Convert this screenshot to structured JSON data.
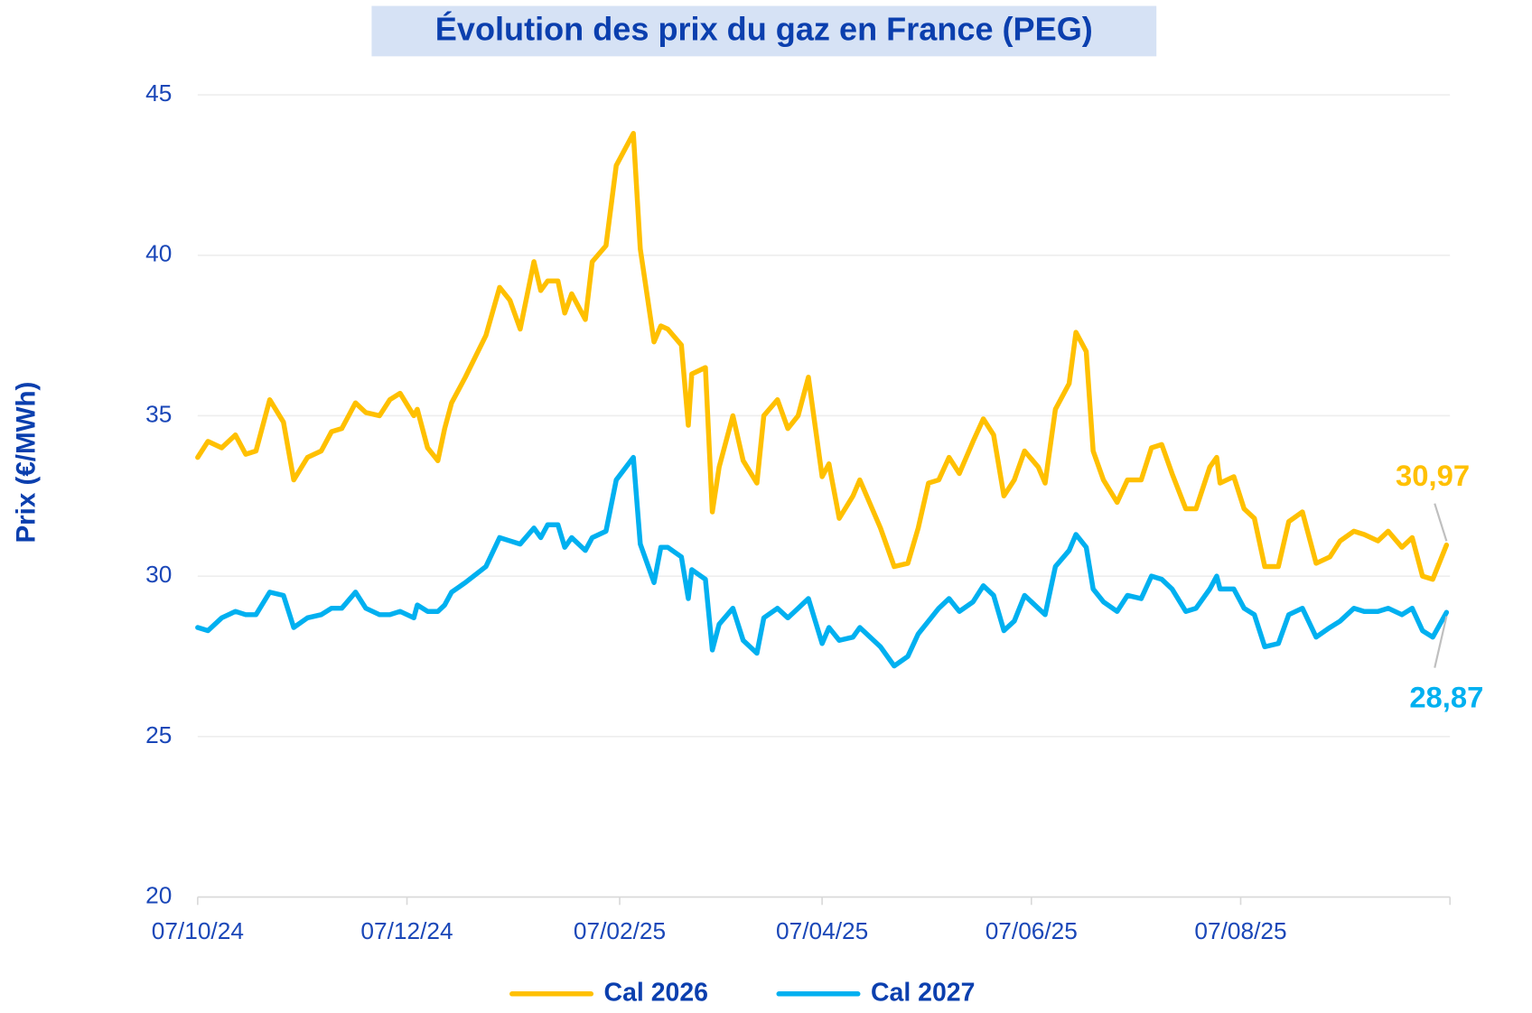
{
  "chart_data": {
    "type": "line",
    "title": "Évolution des prix du gaz en France (PEG)",
    "y_label": "Prix (€/MWh)",
    "x": [
      "07/10/24",
      "10/10/24",
      "14/10/24",
      "18/10/24",
      "21/10/24",
      "24/10/24",
      "28/10/24",
      "01/11/24",
      "04/11/24",
      "08/11/24",
      "12/11/24",
      "15/11/24",
      "18/11/24",
      "22/11/24",
      "25/11/24",
      "29/11/24",
      "02/12/24",
      "05/12/24",
      "09/12/24",
      "10/12/24",
      "13/12/24",
      "16/12/24",
      "18/12/24",
      "20/12/24",
      "24/12/24",
      "30/12/24",
      "03/01/25",
      "06/01/25",
      "09/01/25",
      "13/01/25",
      "15/01/25",
      "17/01/25",
      "20/01/25",
      "22/01/25",
      "24/01/25",
      "28/01/25",
      "30/01/25",
      "03/02/25",
      "06/02/25",
      "11/02/25",
      "13/02/25",
      "17/02/25",
      "19/02/25",
      "21/02/25",
      "25/02/25",
      "27/02/25",
      "28/02/25",
      "04/03/25",
      "06/03/25",
      "08/03/25",
      "12/03/25",
      "15/03/25",
      "19/03/25",
      "21/03/25",
      "25/03/25",
      "28/03/25",
      "31/03/25",
      "03/04/25",
      "07/04/25",
      "09/04/25",
      "12/04/25",
      "16/04/25",
      "18/04/25",
      "24/04/25",
      "28/04/25",
      "02/05/25",
      "05/05/25",
      "08/05/25",
      "11/05/25",
      "14/05/25",
      "17/05/25",
      "21/05/25",
      "24/05/25",
      "27/05/25",
      "30/05/25",
      "02/06/25",
      "05/06/25",
      "09/06/25",
      "11/06/25",
      "14/06/25",
      "18/06/25",
      "20/06/25",
      "23/06/25",
      "25/06/25",
      "28/06/25",
      "02/07/25",
      "05/07/25",
      "09/07/25",
      "12/07/25",
      "15/07/25",
      "18/07/25",
      "22/07/25",
      "25/07/25",
      "29/07/25",
      "31/07/25",
      "01/08/25",
      "05/08/25",
      "08/08/25",
      "11/08/25",
      "14/08/25",
      "18/08/25",
      "21/08/25",
      "25/08/25",
      "29/08/25",
      "02/09/25",
      "05/09/25",
      "09/09/25",
      "12/09/25",
      "16/09/25",
      "19/09/25",
      "23/09/25",
      "26/09/25",
      "29/09/25",
      "02/10/25",
      "06/10/25"
    ],
    "series": [
      {
        "name": "Cal 2026",
        "color": "#ffc000",
        "values": [
          33.7,
          34.2,
          34.0,
          34.4,
          33.8,
          33.9,
          35.5,
          34.8,
          33.0,
          33.7,
          33.9,
          34.5,
          34.6,
          35.4,
          35.1,
          35.0,
          35.5,
          35.7,
          35.0,
          35.2,
          34.0,
          33.6,
          34.6,
          35.4,
          36.2,
          37.5,
          39.0,
          38.6,
          37.7,
          39.8,
          38.9,
          39.2,
          39.2,
          38.2,
          38.8,
          38.0,
          39.8,
          40.3,
          42.8,
          43.8,
          40.2,
          37.3,
          37.8,
          37.7,
          37.2,
          34.7,
          36.3,
          36.5,
          32.0,
          33.4,
          35.0,
          33.6,
          32.9,
          35.0,
          35.5,
          34.6,
          35.0,
          36.2,
          33.1,
          33.5,
          31.8,
          32.5,
          33.0,
          31.5,
          30.3,
          30.4,
          31.5,
          32.9,
          33.0,
          33.7,
          33.2,
          34.2,
          34.9,
          34.4,
          32.5,
          33.0,
          33.9,
          33.4,
          32.9,
          35.2,
          36.0,
          37.6,
          37.0,
          33.9,
          33.0,
          32.3,
          33.0,
          33.0,
          34.0,
          34.1,
          33.2,
          32.1,
          32.1,
          33.4,
          33.7,
          32.9,
          33.1,
          32.1,
          31.8,
          30.3,
          30.3,
          31.7,
          32.0,
          30.4,
          30.6,
          31.1,
          31.4,
          31.3,
          31.1,
          31.4,
          30.9,
          31.2,
          30.0,
          29.9,
          30.97
        ],
        "value_labels": [
          null,
          null,
          null,
          null,
          null,
          null,
          null,
          null,
          null,
          null,
          null,
          null,
          null,
          null,
          null,
          null,
          null,
          null,
          null,
          null,
          null,
          null,
          null,
          null,
          null,
          null,
          null,
          null,
          null,
          null,
          null,
          null,
          null,
          null,
          null,
          null,
          null,
          null,
          null,
          null,
          null,
          null,
          null,
          null,
          null,
          null,
          null,
          null,
          null,
          null,
          null,
          null,
          null,
          null,
          null,
          null,
          null,
          null,
          null,
          null,
          null,
          null,
          null,
          null,
          null,
          null,
          null,
          null,
          null,
          null,
          null,
          null,
          null,
          null,
          null,
          null,
          null,
          null,
          null,
          null,
          null,
          null,
          null,
          null,
          null,
          null,
          null,
          null,
          null,
          null,
          null,
          null,
          null,
          null,
          null,
          null,
          null,
          null,
          null,
          null,
          null,
          null,
          null,
          null,
          null,
          null,
          null,
          null,
          null,
          null,
          null,
          null,
          null,
          null,
          "30,97"
        ]
      },
      {
        "name": "Cal 2027",
        "color": "#00b0f0",
        "values": [
          28.4,
          28.3,
          28.7,
          28.9,
          28.8,
          28.8,
          29.5,
          29.4,
          28.4,
          28.7,
          28.8,
          29.0,
          29.0,
          29.5,
          29.0,
          28.8,
          28.8,
          28.9,
          28.7,
          29.1,
          28.9,
          28.9,
          29.1,
          29.5,
          29.8,
          30.3,
          31.2,
          31.1,
          31.0,
          31.5,
          31.2,
          31.6,
          31.6,
          30.9,
          31.2,
          30.8,
          31.2,
          31.4,
          33.0,
          33.7,
          31.0,
          29.8,
          30.9,
          30.9,
          30.6,
          29.3,
          30.2,
          29.9,
          27.7,
          28.5,
          29.0,
          28.0,
          27.6,
          28.7,
          29.0,
          28.7,
          29.0,
          29.3,
          27.9,
          28.4,
          28.0,
          28.1,
          28.4,
          27.8,
          27.2,
          27.5,
          28.2,
          28.6,
          29.0,
          29.3,
          28.9,
          29.2,
          29.7,
          29.4,
          28.3,
          28.6,
          29.4,
          29.0,
          28.8,
          30.3,
          30.8,
          31.3,
          30.9,
          29.6,
          29.2,
          28.9,
          29.4,
          29.3,
          30.0,
          29.9,
          29.6,
          28.9,
          29.0,
          29.6,
          30.0,
          29.6,
          29.6,
          29.0,
          28.8,
          27.8,
          27.9,
          28.8,
          29.0,
          28.1,
          28.4,
          28.6,
          29.0,
          28.9,
          28.9,
          29.0,
          28.8,
          29.0,
          28.3,
          28.1,
          28.87
        ],
        "value_labels": [
          null,
          null,
          null,
          null,
          null,
          null,
          null,
          null,
          null,
          null,
          null,
          null,
          null,
          null,
          null,
          null,
          null,
          null,
          null,
          null,
          null,
          null,
          null,
          null,
          null,
          null,
          null,
          null,
          null,
          null,
          null,
          null,
          null,
          null,
          null,
          null,
          null,
          null,
          null,
          null,
          null,
          null,
          null,
          null,
          null,
          null,
          null,
          null,
          null,
          null,
          null,
          null,
          null,
          null,
          null,
          null,
          null,
          null,
          null,
          null,
          null,
          null,
          null,
          null,
          null,
          null,
          null,
          null,
          null,
          null,
          null,
          null,
          null,
          null,
          null,
          null,
          null,
          null,
          null,
          null,
          null,
          null,
          null,
          null,
          null,
          null,
          null,
          null,
          null,
          null,
          null,
          null,
          null,
          null,
          null,
          null,
          null,
          null,
          null,
          null,
          null,
          null,
          null,
          null,
          null,
          null,
          null,
          null,
          null,
          null,
          null,
          null,
          null,
          null,
          "28,87"
        ]
      }
    ],
    "xlim": [
      "07/10/24",
      "07/10/25"
    ],
    "xticks": [
      "07/10/24",
      "07/12/24",
      "07/02/25",
      "07/04/25",
      "07/06/25",
      "07/08/25"
    ],
    "ylim": [
      20,
      45
    ],
    "yticks": [
      20,
      25,
      30,
      35,
      40,
      45
    ],
    "grid": true,
    "legend": "bottom"
  }
}
